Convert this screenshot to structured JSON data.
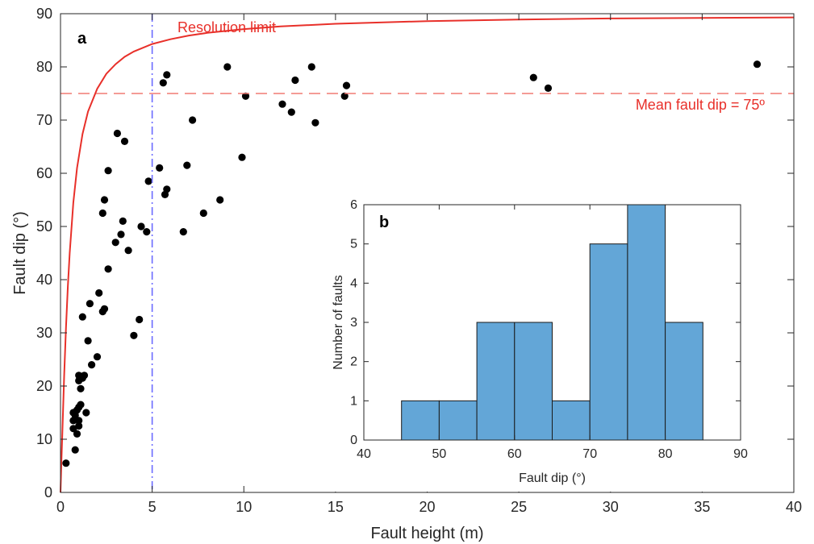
{
  "chart_data": [
    {
      "type": "scatter",
      "panel_label": "a",
      "xlabel": "Fault height (m)",
      "ylabel": "Fault dip (°)",
      "xlim": [
        0,
        40
      ],
      "ylim": [
        0,
        90
      ],
      "xticks": [
        0,
        5,
        10,
        15,
        20,
        25,
        30,
        35,
        40
      ],
      "yticks": [
        0,
        10,
        20,
        30,
        40,
        50,
        60,
        70,
        80,
        90
      ],
      "grid": false,
      "annotations": {
        "resolution_label": "Resolution limit",
        "mean_label": "Mean fault dip = 75º"
      },
      "reference_lines": {
        "mean_dip": 75,
        "vertical_x": 5
      },
      "colors": {
        "points": "#000000",
        "resolution_curve": "#e8302a",
        "mean_line": "#f07a74",
        "vertical_line": "#6b6bff"
      },
      "resolution_curve": {
        "x": [
          0.05,
          0.1,
          0.2,
          0.3,
          0.4,
          0.5,
          0.7,
          0.9,
          1.2,
          1.5,
          2,
          2.5,
          3,
          3.5,
          4,
          5,
          6,
          7,
          8,
          10,
          12,
          15,
          20,
          25,
          30,
          35,
          40
        ],
        "y": [
          5.7,
          11.3,
          21.8,
          31.0,
          38.7,
          45.0,
          54.5,
          61.0,
          67.4,
          71.6,
          75.9,
          78.7,
          80.5,
          81.9,
          82.9,
          84.3,
          85.2,
          85.9,
          86.4,
          87.1,
          87.6,
          88.1,
          88.6,
          88.9,
          89.1,
          89.2,
          89.3
        ]
      },
      "points": [
        [
          0.3,
          5.5
        ],
        [
          0.8,
          8
        ],
        [
          0.9,
          11
        ],
        [
          0.7,
          12
        ],
        [
          1.0,
          12.5
        ],
        [
          0.7,
          13.5
        ],
        [
          1.0,
          13.5
        ],
        [
          0.8,
          14.5
        ],
        [
          0.7,
          15
        ],
        [
          1.4,
          15
        ],
        [
          0.9,
          15.5
        ],
        [
          1.0,
          16
        ],
        [
          1.1,
          16.5
        ],
        [
          1.1,
          19.5
        ],
        [
          1.0,
          21
        ],
        [
          1.2,
          21.5
        ],
        [
          1.0,
          22
        ],
        [
          1.3,
          22
        ],
        [
          1.7,
          24
        ],
        [
          2.0,
          25.5
        ],
        [
          1.5,
          28.5
        ],
        [
          4.0,
          29.5
        ],
        [
          1.2,
          33
        ],
        [
          4.3,
          32.5
        ],
        [
          2.3,
          34
        ],
        [
          2.4,
          34.5
        ],
        [
          1.6,
          35.5
        ],
        [
          2.1,
          37.5
        ],
        [
          2.6,
          42
        ],
        [
          3.7,
          45.5
        ],
        [
          3.0,
          47
        ],
        [
          3.3,
          48.5
        ],
        [
          4.7,
          49
        ],
        [
          6.7,
          49
        ],
        [
          4.4,
          50
        ],
        [
          3.4,
          51
        ],
        [
          2.3,
          52.5
        ],
        [
          7.8,
          52.5
        ],
        [
          2.4,
          55
        ],
        [
          8.7,
          55
        ],
        [
          5.7,
          56
        ],
        [
          5.8,
          57
        ],
        [
          4.8,
          58.5
        ],
        [
          2.6,
          60.5
        ],
        [
          5.4,
          61
        ],
        [
          6.9,
          61.5
        ],
        [
          9.9,
          63
        ],
        [
          3.5,
          66
        ],
        [
          3.1,
          67.5
        ],
        [
          7.2,
          70
        ],
        [
          13.9,
          69.5
        ],
        [
          12.6,
          71.5
        ],
        [
          12.1,
          73
        ],
        [
          15.5,
          74.5
        ],
        [
          10.1,
          74.5
        ],
        [
          15.6,
          76.5
        ],
        [
          5.6,
          77
        ],
        [
          12.8,
          77.5
        ],
        [
          5.8,
          78.5
        ],
        [
          9.1,
          80
        ],
        [
          13.7,
          80
        ],
        [
          25.8,
          78
        ],
        [
          26.6,
          76
        ],
        [
          38.0,
          80.5
        ]
      ]
    },
    {
      "type": "bar",
      "panel_label": "b",
      "xlabel": "Fault dip (°)",
      "ylabel": "Number of faults",
      "xlim": [
        40,
        90
      ],
      "ylim": [
        0,
        6
      ],
      "xticks": [
        40,
        50,
        60,
        70,
        80,
        90
      ],
      "yticks": [
        0,
        1,
        2,
        3,
        4,
        5,
        6
      ],
      "bin_edges": [
        45,
        50,
        55,
        60,
        65,
        70,
        75,
        80,
        85
      ],
      "values": [
        1,
        1,
        3,
        3,
        1,
        5,
        6,
        3
      ],
      "colors": {
        "bars": "#63a6d7"
      }
    }
  ]
}
